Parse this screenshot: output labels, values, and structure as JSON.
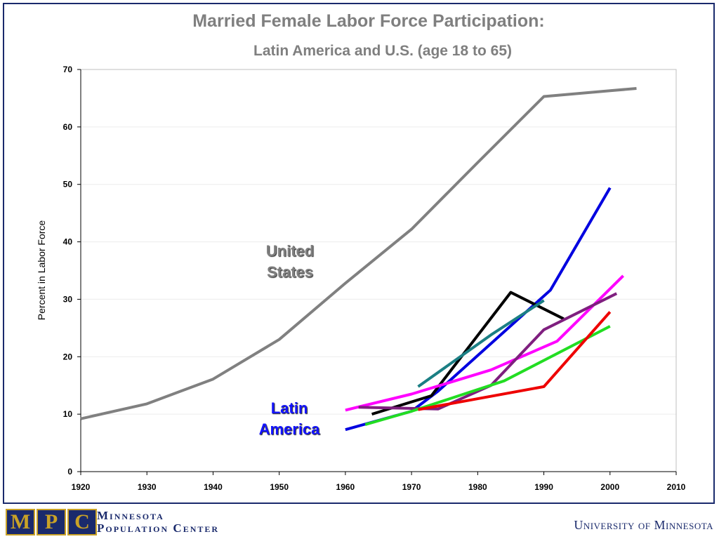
{
  "chart_data": {
    "type": "line",
    "title": "Married Female Labor Force Participation:",
    "subtitle": "Latin America and U.S.  (age 18 to 65)",
    "ylabel": "Percent in Labor Force",
    "xlabel": "",
    "xlim": [
      1920,
      2010
    ],
    "ylim": [
      0,
      70
    ],
    "xticks": [
      1920,
      1930,
      1940,
      1950,
      1960,
      1970,
      1980,
      1990,
      2000,
      2010
    ],
    "yticks": [
      0,
      10,
      20,
      30,
      40,
      50,
      60,
      70
    ],
    "grid": "horizontal",
    "annotations": [
      {
        "text_lines": [
          "United",
          "States"
        ],
        "color": "#7f7f7f"
      },
      {
        "text_lines": [
          "Latin",
          "America"
        ],
        "color": "#1414ff"
      }
    ],
    "series": [
      {
        "color": "#808080",
        "x": [
          1920,
          1930,
          1940,
          1950,
          1960,
          1970,
          1980,
          1990,
          2000,
          2004
        ],
        "y": [
          9.2,
          11.8,
          16.1,
          23.0,
          32.8,
          42.2,
          53.8,
          65.3,
          66.3,
          66.7
        ]
      },
      {
        "color": "#0000e0",
        "x": [
          1960,
          1970,
          1974,
          1991,
          2000
        ],
        "y": [
          7.3,
          10.5,
          14.0,
          31.6,
          49.4
        ]
      },
      {
        "color": "#000000",
        "x": [
          1964,
          1973,
          1985,
          1993
        ],
        "y": [
          10.0,
          13.2,
          31.2,
          26.6
        ]
      },
      {
        "color": "#1b7f84",
        "x": [
          1971,
          1982,
          1990
        ],
        "y": [
          14.8,
          23.8,
          29.8
        ]
      },
      {
        "color": "#ff00ff",
        "x": [
          1960,
          1970,
          1982,
          1992,
          2002
        ],
        "y": [
          10.7,
          13.5,
          17.7,
          22.7,
          34.1
        ]
      },
      {
        "color": "#7f1f7f",
        "x": [
          1962,
          1974,
          1982,
          1990,
          2001
        ],
        "y": [
          11.2,
          10.9,
          15.0,
          24.7,
          31.0
        ]
      },
      {
        "color": "#22dd22",
        "x": [
          1963,
          1970,
          1984,
          2000
        ],
        "y": [
          8.2,
          10.5,
          15.8,
          25.3
        ]
      },
      {
        "color": "#ee0000",
        "x": [
          1971,
          1990,
          2000
        ],
        "y": [
          10.8,
          14.8,
          27.8
        ]
      }
    ]
  },
  "footer": {
    "mpc_letters": [
      "M",
      "P",
      "C"
    ],
    "org_line1": "Minnesota",
    "org_line2": "Population Center",
    "university": "University of Minnesota"
  }
}
